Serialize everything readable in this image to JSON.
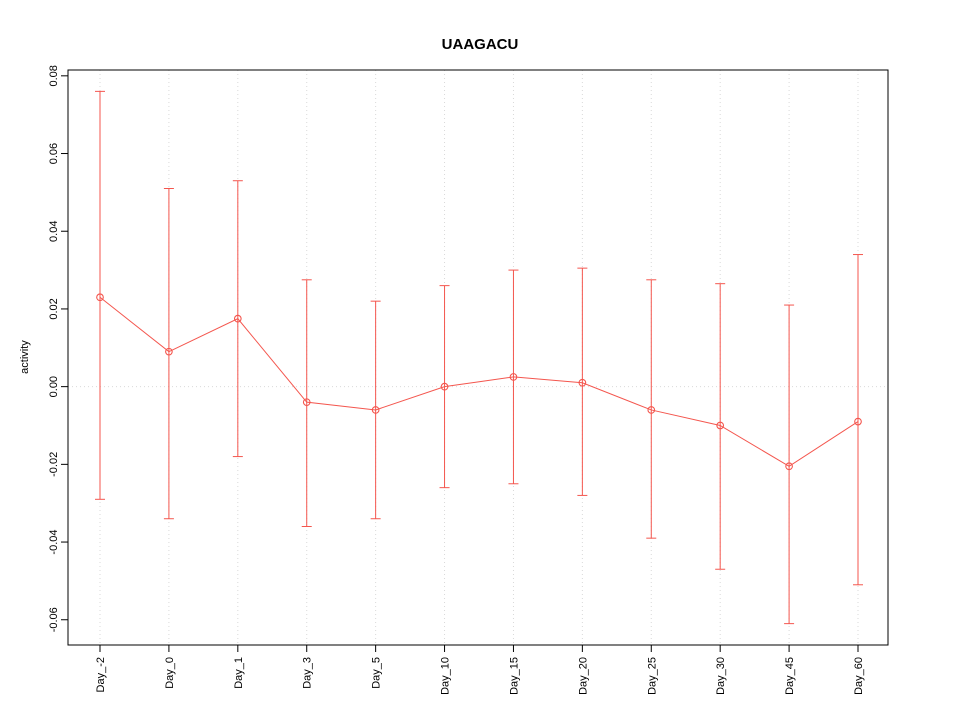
{
  "chart_data": {
    "type": "line",
    "title": "UAAGACU",
    "xlabel": "",
    "ylabel": "activity",
    "categories": [
      "Day_-2",
      "Day_0",
      "Day_1",
      "Day_3",
      "Day_5",
      "Day_10",
      "Day_15",
      "Day_20",
      "Day_25",
      "Day_30",
      "Day_45",
      "Day_60"
    ],
    "series": [
      {
        "name": "activity",
        "values": [
          0.023,
          0.009,
          0.0175,
          -0.004,
          -0.006,
          0.0,
          0.0025,
          0.001,
          -0.006,
          -0.01,
          -0.0205,
          -0.009
        ],
        "lower": [
          -0.029,
          -0.034,
          -0.018,
          -0.036,
          -0.034,
          -0.026,
          -0.025,
          -0.028,
          -0.039,
          -0.047,
          -0.061,
          -0.051
        ],
        "upper": [
          0.076,
          0.051,
          0.053,
          0.0275,
          0.022,
          0.026,
          0.03,
          0.0305,
          0.0275,
          0.0265,
          0.021,
          0.034
        ]
      }
    ],
    "ylim": [
      -0.0665,
      0.0815
    ],
    "yticks": [
      -0.06,
      -0.04,
      -0.02,
      0.0,
      0.02,
      0.04,
      0.06,
      0.08
    ],
    "grid": true,
    "legend": "none",
    "series_color": "#f4564e",
    "grid_color": "#d9d9d9",
    "axis_color": "#000000"
  }
}
